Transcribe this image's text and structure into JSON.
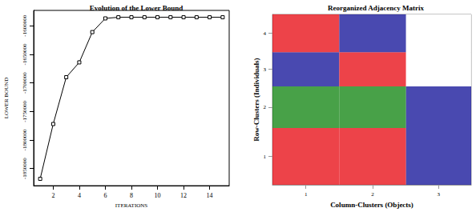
{
  "chart_data": [
    {
      "type": "line",
      "title": "Evolution of the Lower Bound",
      "xlabel": "ITERATIONS",
      "ylabel": "LOWER BOUND",
      "x": [
        1,
        2,
        3,
        4,
        5,
        6,
        7,
        8,
        9,
        10,
        11,
        12,
        13,
        14,
        15
      ],
      "values": [
        -1868000,
        -1772000,
        -1690000,
        -1664000,
        -1611000,
        -1587000,
        -1585000,
        -1585000,
        -1585000,
        -1585000,
        -1585000,
        -1585000,
        -1585000,
        -1585000,
        -1585000
      ],
      "color": "#000000",
      "marker": "square",
      "xlim": [
        0.5,
        15.5
      ],
      "xticks": [
        2,
        4,
        6,
        8,
        10,
        12,
        14
      ],
      "ylim": [
        -1880000,
        -1573000
      ],
      "yticks": [
        -1850000,
        -1800000,
        -1750000,
        -1700000,
        -1650000,
        -1600000
      ],
      "grid": false
    },
    {
      "type": "block_matrix",
      "title": "Reorganized Adjacency Matrix",
      "xlabel": "Column-Clusters (Objects)",
      "ylabel": "Row-Clusters (Individuals)",
      "col_clusters": [
        1,
        2,
        3
      ],
      "row_clusters": [
        1,
        2,
        3,
        4
      ],
      "col_sizes": [
        80,
        80,
        78
      ],
      "row_sizes": [
        75,
        55,
        45,
        50
      ],
      "cells": [
        [
          "#e8141c",
          "#e8141c",
          "#1c1c9c"
        ],
        [
          "#1a8a1a",
          "#1a8a1a",
          "#1c1c9c"
        ],
        [
          "#1c1c9c",
          "#e8141c",
          "#ffffff"
        ],
        [
          "#e8141c",
          "#1c1c9c",
          "#ffffff"
        ]
      ],
      "grid": false
    }
  ]
}
